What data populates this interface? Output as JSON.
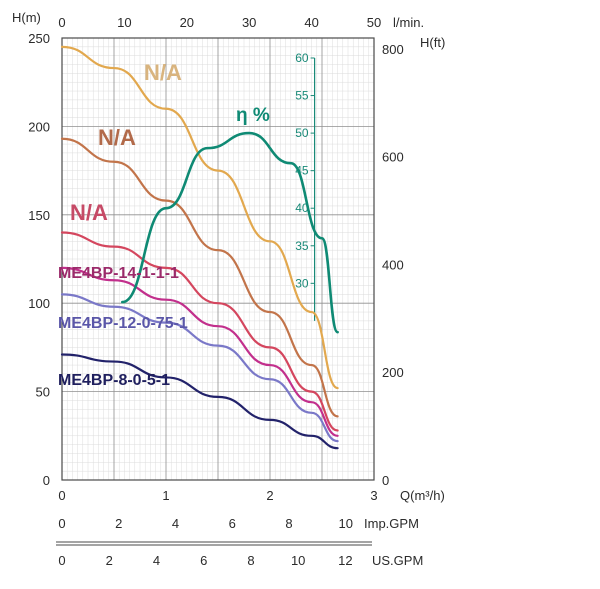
{
  "chart_data": {
    "type": "line",
    "axes": {
      "y_left_label": "H(m)",
      "y_left_ticks": [
        "0",
        "50",
        "100",
        "150",
        "200",
        "250"
      ],
      "x_bottom_label": "Q(m³/h)",
      "x_bottom_ticks": [
        "0",
        "1",
        "2",
        "3"
      ],
      "x_top_label": "l/min.",
      "x_top_ticks": [
        "0",
        "10",
        "20",
        "30",
        "40",
        "50"
      ],
      "y_right_label": "H(ft)",
      "y_right_ticks": [
        "0",
        "200",
        "400",
        "600",
        "800"
      ],
      "eta_label": "η %",
      "eta_ticks": [
        "30",
        "35",
        "40",
        "45",
        "50",
        "55",
        "60"
      ],
      "imp_gpm_label": "Imp.GPM",
      "imp_gpm_ticks": [
        "0",
        "2",
        "4",
        "6",
        "8",
        "10"
      ],
      "us_gpm_label": "US.GPM",
      "us_gpm_ticks": [
        "0",
        "2",
        "4",
        "6",
        "8",
        "10",
        "12"
      ]
    },
    "xlim": [
      0,
      3
    ],
    "ylim": [
      0,
      250
    ],
    "series": [
      {
        "name": "N/A",
        "color": "#e2a84e",
        "label_color": "#d9b47e",
        "points": [
          [
            0,
            245
          ],
          [
            0.5,
            233
          ],
          [
            1.0,
            210
          ],
          [
            1.5,
            175
          ],
          [
            2.0,
            135
          ],
          [
            2.4,
            95
          ],
          [
            2.65,
            52
          ]
        ]
      },
      {
        "name": "N/A",
        "color": "#c2744a",
        "label_color": "#b26a4a",
        "points": [
          [
            0,
            193
          ],
          [
            0.5,
            180
          ],
          [
            1.0,
            158
          ],
          [
            1.5,
            130
          ],
          [
            2.0,
            95
          ],
          [
            2.4,
            65
          ],
          [
            2.65,
            36
          ]
        ]
      },
      {
        "name": "N/A",
        "color": "#d4465e",
        "label_color": "#c64a66",
        "points": [
          [
            0,
            140
          ],
          [
            0.5,
            132
          ],
          [
            1.0,
            120
          ],
          [
            1.5,
            100
          ],
          [
            2.0,
            75
          ],
          [
            2.4,
            50
          ],
          [
            2.65,
            28
          ]
        ]
      },
      {
        "name": "ME4BP-14-1-1-1",
        "color": "#c22f8c",
        "label_color": "#9b2a6a",
        "points": [
          [
            0,
            120
          ],
          [
            0.5,
            113
          ],
          [
            1.0,
            102
          ],
          [
            1.5,
            87
          ],
          [
            2.0,
            65
          ],
          [
            2.4,
            44
          ],
          [
            2.65,
            25
          ]
        ]
      },
      {
        "name": "ME4BP-12-0-75-1",
        "color": "#7a78c8",
        "label_color": "#5a56a8",
        "points": [
          [
            0,
            105
          ],
          [
            0.5,
            98
          ],
          [
            1.0,
            89
          ],
          [
            1.5,
            76
          ],
          [
            2.0,
            57
          ],
          [
            2.4,
            38
          ],
          [
            2.65,
            22
          ]
        ]
      },
      {
        "name": "ME4BP-8-0-5-1",
        "color": "#22226a",
        "label_color": "#1f1f5e",
        "points": [
          [
            0,
            71
          ],
          [
            0.5,
            67
          ],
          [
            1.0,
            58
          ],
          [
            1.5,
            47
          ],
          [
            2.0,
            34
          ],
          [
            2.4,
            25
          ],
          [
            2.65,
            18
          ]
        ]
      }
    ],
    "efficiency": {
      "name": "η %",
      "color": "#0f8a74",
      "ylim": [
        30,
        60
      ],
      "points": [
        [
          0.58,
          27.5
        ],
        [
          1.0,
          40
        ],
        [
          1.4,
          48
        ],
        [
          1.8,
          50
        ],
        [
          2.2,
          46
        ],
        [
          2.5,
          36
        ],
        [
          2.65,
          23.5
        ]
      ]
    }
  }
}
